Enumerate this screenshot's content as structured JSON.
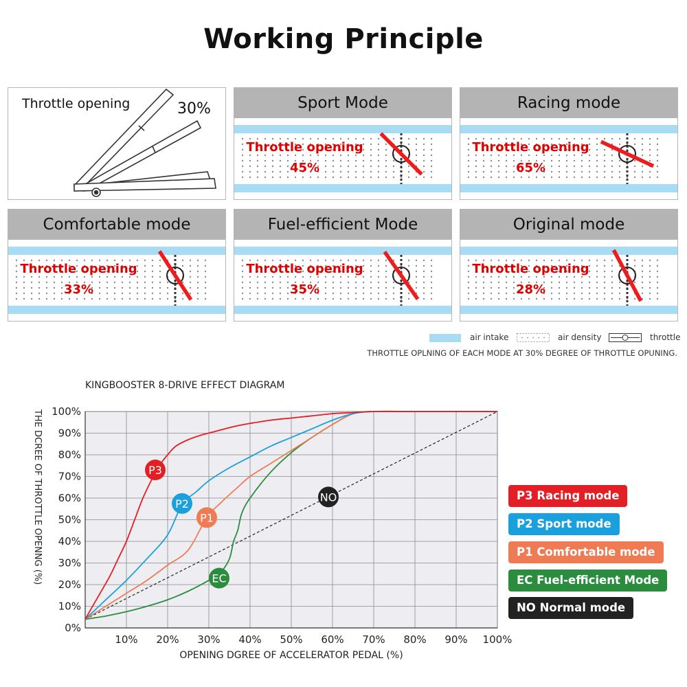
{
  "page_title": "Working Principle",
  "intro_panel": {
    "label": "Throttle opening",
    "angle": "30%"
  },
  "mode_panels": [
    {
      "name": "Sport Mode",
      "text": "Throttle opening",
      "value": "45%",
      "opening": 45
    },
    {
      "name": "Racing mode",
      "text": "Throttle opening",
      "value": "65%",
      "opening": 65
    },
    {
      "name": "Comfortable mode",
      "text": "Throttle opening",
      "value": "33%",
      "opening": 33
    },
    {
      "name": "Fuel-efficient Mode",
      "text": "Throttle opening",
      "value": "35%",
      "opening": 35
    },
    {
      "name": "Original mode",
      "text": "Throttle opening",
      "value": "28%",
      "opening": 28
    }
  ],
  "panel_legend": {
    "air_intake": "air intake",
    "air_density": "air density",
    "throttle": "throttle"
  },
  "panel_note": "THROTTLE OPLNING OF EACH MODE AT 30% DEGREE OF THROTTLE OPUNING.",
  "colors": {
    "air_intake": "#a8dcf5",
    "throttle_needle": "#ee1c1c",
    "panel_header": "#b4b4b4"
  },
  "chart_data": {
    "type": "line",
    "title": "KINGBOOSTER 8-DRIVE EFFECT DIAGRAM",
    "xlabel": "OPENING DGREE OF ACCELERATOR PEDAL (%)",
    "ylabel": "THE DCREE OF THROTTLE OPENNG (%)",
    "xlim": [
      0,
      100
    ],
    "ylim": [
      0,
      100
    ],
    "x_ticks": [
      "10%",
      "20%",
      "30%",
      "40%",
      "50%",
      "60%",
      "70%",
      "80%",
      "90%",
      "100%"
    ],
    "y_ticks": [
      "0%",
      "10%",
      "20%",
      "30%",
      "40%",
      "50%",
      "60%",
      "70%",
      "80%",
      "90%",
      "100%"
    ],
    "grid": true,
    "series": [
      {
        "name": "P3 Racing mode",
        "marker": "P3",
        "color": "#e31e24",
        "marker_at": [
          17,
          73
        ],
        "x": [
          0,
          3,
          6,
          8,
          10,
          12,
          14,
          16,
          18,
          20,
          22,
          25,
          28,
          32,
          36,
          40,
          45,
          50,
          55,
          60,
          65,
          70,
          80,
          90,
          100
        ],
        "y": [
          4,
          14,
          24,
          32,
          40,
          50,
          60,
          68,
          75,
          80,
          84,
          87,
          89,
          91,
          93,
          94.5,
          96,
          97,
          98,
          99,
          99.5,
          100,
          100,
          100,
          100
        ]
      },
      {
        "name": "P2 Sport mode",
        "marker": "P2",
        "color": "#1aa0dc",
        "marker_at": [
          23.5,
          57.5
        ],
        "x": [
          0,
          5,
          10,
          15,
          20,
          23.5,
          27,
          30,
          35,
          40,
          45,
          50,
          55,
          60,
          65,
          70,
          80,
          90,
          100
        ],
        "y": [
          4,
          13,
          22,
          32,
          43,
          57,
          63,
          68,
          74,
          79,
          84,
          88,
          92,
          96,
          99,
          100,
          100,
          100,
          100
        ]
      },
      {
        "name": "P1 Comfortable mode",
        "marker": "P1",
        "color": "#ef7b55",
        "marker_at": [
          29.5,
          51
        ],
        "x": [
          0,
          5,
          10,
          15,
          20,
          25,
          29.5,
          33,
          37,
          40,
          45,
          50,
          55,
          60,
          65,
          70,
          80,
          90,
          100
        ],
        "y": [
          4,
          10,
          16,
          22,
          29,
          36,
          51,
          58,
          65,
          70,
          76,
          82,
          88,
          94,
          99,
          100,
          100,
          100,
          100
        ]
      },
      {
        "name": "EC Fuel-efficient Mode",
        "marker": "EC",
        "color": "#2a8d3e",
        "marker_at": [
          32.5,
          23
        ],
        "x": [
          0,
          5,
          10,
          15,
          20,
          25,
          30,
          33,
          35,
          36,
          37,
          38,
          40,
          45,
          50,
          55,
          60,
          65,
          70,
          80,
          90,
          100
        ],
        "y": [
          4,
          5.5,
          7.5,
          10,
          13,
          17,
          22,
          26,
          32,
          40,
          45,
          53,
          60,
          72,
          81,
          88,
          94,
          99,
          100,
          100,
          100,
          100
        ]
      },
      {
        "name": "NO Normal mode",
        "marker": "NO",
        "color": "#222222",
        "marker_at": [
          59,
          60.5
        ],
        "dashed": true,
        "x": [
          0,
          100
        ],
        "y": [
          4,
          100
        ]
      }
    ],
    "legend": "right"
  }
}
